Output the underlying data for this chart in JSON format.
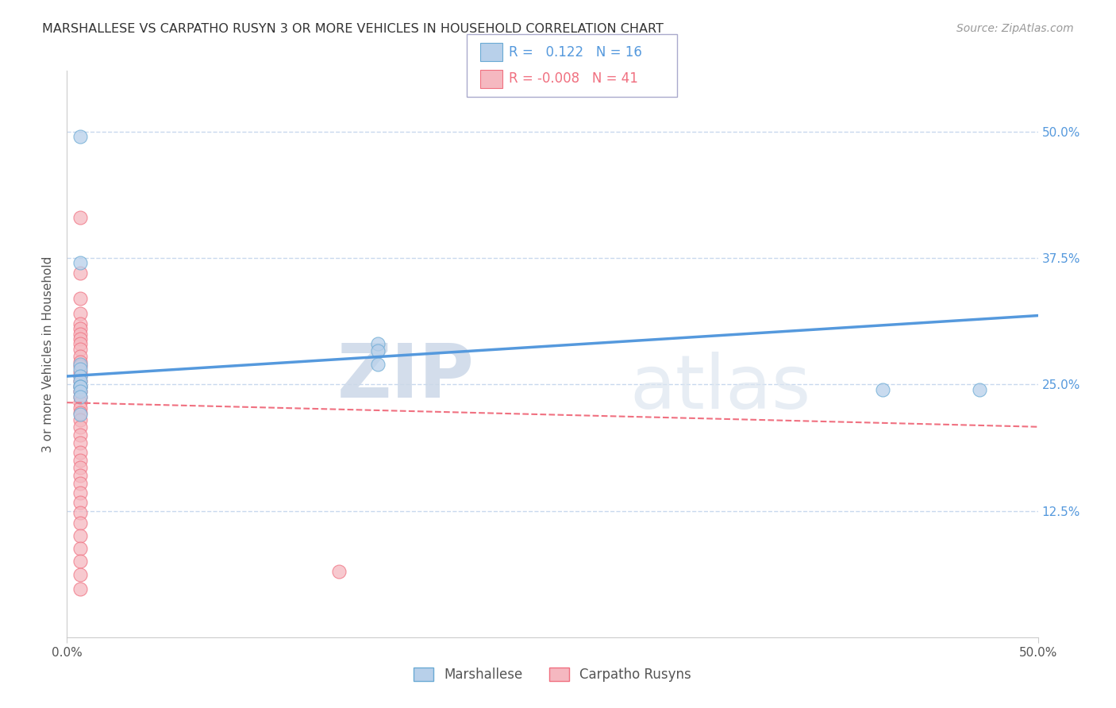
{
  "title": "MARSHALLESE VS CARPATHO RUSYN 3 OR MORE VEHICLES IN HOUSEHOLD CORRELATION CHART",
  "source": "Source: ZipAtlas.com",
  "ylabel": "3 or more Vehicles in Household",
  "ytick_labels": [
    "12.5%",
    "25.0%",
    "37.5%",
    "50.0%"
  ],
  "ytick_values": [
    0.125,
    0.25,
    0.375,
    0.5
  ],
  "xlim": [
    0.0,
    0.5
  ],
  "ylim": [
    0.0,
    0.56
  ],
  "legend_r_marshallese": "0.122",
  "legend_n_marshallese": "16",
  "legend_r_carpatho": "-0.008",
  "legend_n_carpatho": "41",
  "marshallese_color": "#b8d0ea",
  "carpatho_color": "#f5b8c0",
  "marshallese_edge_color": "#6aaad4",
  "carpatho_edge_color": "#f07080",
  "marshallese_line_color": "#5599dd",
  "carpatho_line_color": "#ee7090",
  "marshallese_x": [
    0.007,
    0.007,
    0.47,
    0.007,
    0.007,
    0.007,
    0.007,
    0.007,
    0.007,
    0.007,
    0.007,
    0.007,
    0.42,
    0.16,
    0.16,
    0.16
  ],
  "marshallese_y": [
    0.495,
    0.37,
    0.245,
    0.27,
    0.265,
    0.258,
    0.253,
    0.248,
    0.248,
    0.243,
    0.238,
    0.22,
    0.245,
    0.29,
    0.283,
    0.27
  ],
  "carpatho_x": [
    0.007,
    0.007,
    0.007,
    0.007,
    0.007,
    0.007,
    0.007,
    0.007,
    0.007,
    0.007,
    0.007,
    0.007,
    0.007,
    0.007,
    0.007,
    0.007,
    0.007,
    0.007,
    0.007,
    0.007,
    0.007,
    0.007,
    0.007,
    0.007,
    0.007,
    0.007,
    0.007,
    0.007,
    0.007,
    0.007,
    0.007,
    0.007,
    0.007,
    0.007,
    0.007,
    0.007,
    0.007,
    0.007,
    0.007,
    0.007,
    0.14
  ],
  "carpatho_y": [
    0.415,
    0.36,
    0.335,
    0.32,
    0.31,
    0.305,
    0.3,
    0.295,
    0.29,
    0.285,
    0.278,
    0.272,
    0.268,
    0.262,
    0.258,
    0.253,
    0.248,
    0.243,
    0.238,
    0.232,
    0.227,
    0.222,
    0.215,
    0.208,
    0.2,
    0.192,
    0.183,
    0.175,
    0.168,
    0.16,
    0.152,
    0.143,
    0.133,
    0.123,
    0.113,
    0.1,
    0.088,
    0.075,
    0.062,
    0.048,
    0.065
  ],
  "watermark_zip": "ZIP",
  "watermark_atlas": "atlas",
  "background_color": "#ffffff",
  "grid_color": "#c8d8ee",
  "ytick_right_color": "#5599dd",
  "trend_line_start_x": 0.0,
  "trend_line_end_x": 0.5,
  "marshallese_trend_y0": 0.258,
  "marshallese_trend_y1": 0.318,
  "carpatho_trend_y0": 0.232,
  "carpatho_trend_y1": 0.208
}
